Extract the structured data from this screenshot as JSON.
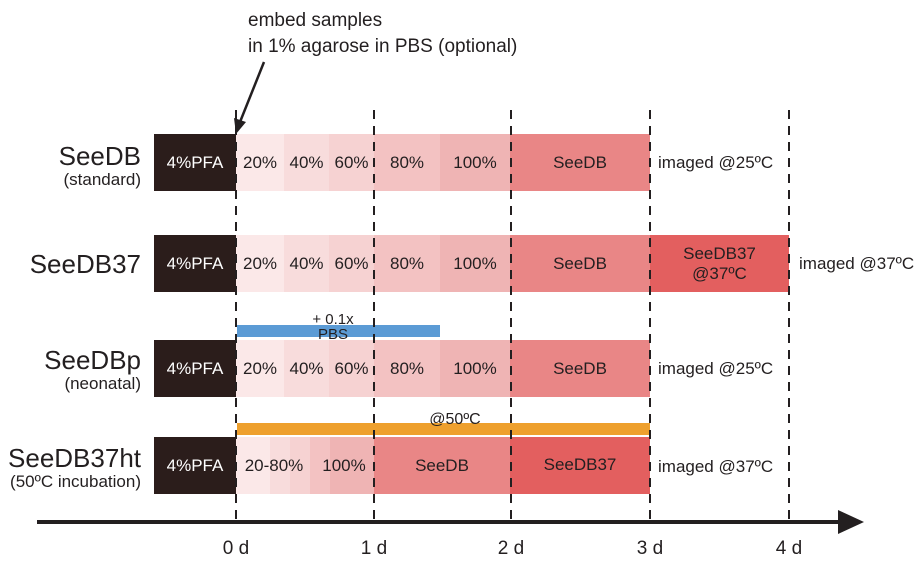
{
  "annotation": "embed samples\nin 1% agarose in PBS (optional)",
  "colors": {
    "pfa": "#2b1d1b",
    "s20": "#fbe8e8",
    "s40": "#f8dcdc",
    "s60": "#f6d2d2",
    "s80": "#f3c2c2",
    "s100": "#efb4b4",
    "seedb": "#e98686",
    "seedb37": "#e35f5f",
    "pbs_bar": "#5b9bd5",
    "heat_bar": "#eea02e",
    "axis": "#231f20"
  },
  "rows": [
    {
      "name": "SeeDB",
      "sub": "(standard)",
      "steps": [
        "4%PFA",
        "20%",
        "40%",
        "60%",
        "80%",
        "100%",
        "SeeDB"
      ],
      "after": "imaged @25ºC"
    },
    {
      "name": "SeeDB37",
      "sub": "",
      "steps": [
        "4%PFA",
        "20%",
        "40%",
        "60%",
        "80%",
        "100%",
        "SeeDB",
        "SeeDB37\n@37ºC"
      ],
      "after": "imaged @37ºC"
    },
    {
      "name": "SeeDBp",
      "sub": "(neonatal)",
      "steps": [
        "4%PFA",
        "20%",
        "40%",
        "60%",
        "80%",
        "100%",
        "SeeDB"
      ],
      "after": "imaged @25ºC",
      "bar_label": "+ 0.1x\nPBS"
    },
    {
      "name": "SeeDB37ht",
      "sub": "(50ºC incubation)",
      "steps": [
        "4%PFA",
        "20-80%",
        "100%",
        "SeeDB",
        "SeeDB37"
      ],
      "after": "imaged @37ºC",
      "bar_label": "@50ºC"
    }
  ],
  "axis_ticks": [
    "0 d",
    "1 d",
    "2 d",
    "3 d",
    "4 d"
  ]
}
